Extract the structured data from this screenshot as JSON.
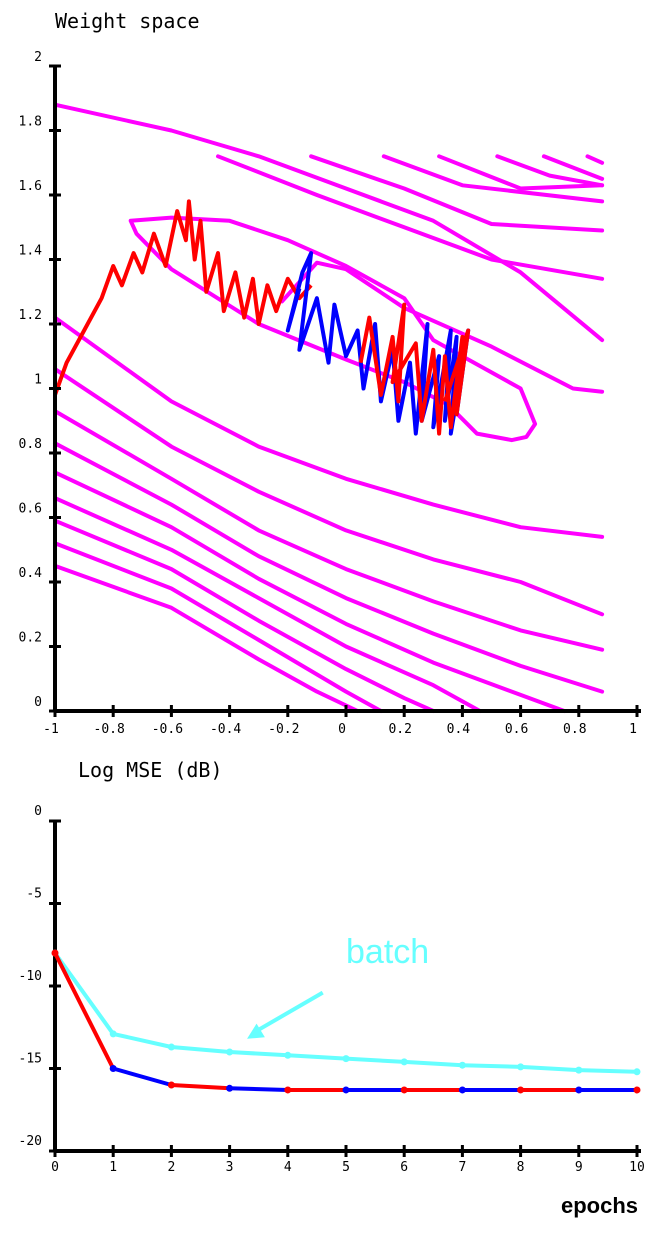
{
  "chart_data": [
    {
      "type": "line",
      "title": "Weight space",
      "xlabel": "",
      "ylabel": "",
      "xlim": [
        -1,
        1
      ],
      "ylim": [
        0,
        2
      ],
      "xticks": [
        "-1",
        "-0.8",
        "-0.6",
        "-0.4",
        "-0.2",
        "0",
        "0.2",
        "0.4",
        "0.6",
        "0.8",
        "1"
      ],
      "yticks": [
        "0",
        "0.2",
        "0.4",
        "0.6",
        "0.8",
        "1",
        "1.2",
        "1.4",
        "1.6",
        "1.8",
        "2"
      ],
      "colors": {
        "contour": "#ff00ff",
        "trajectory_a": "#ff0000",
        "trajectory_b": "#0000ff"
      },
      "contours": [
        [
          [
            -1,
            1.88
          ],
          [
            -0.6,
            1.8
          ],
          [
            -0.3,
            1.72
          ],
          [
            0,
            1.62
          ],
          [
            0.3,
            1.52
          ],
          [
            0.6,
            1.36
          ],
          [
            0.88,
            1.15
          ]
        ],
        [
          [
            -0.44,
            1.72
          ],
          [
            -0.1,
            1.6
          ],
          [
            0.2,
            1.5
          ],
          [
            0.5,
            1.4
          ],
          [
            0.88,
            1.34
          ]
        ],
        [
          [
            -0.12,
            1.72
          ],
          [
            0.2,
            1.62
          ],
          [
            0.5,
            1.51
          ],
          [
            0.88,
            1.49
          ]
        ],
        [
          [
            0.13,
            1.72
          ],
          [
            0.4,
            1.63
          ],
          [
            0.88,
            1.58
          ]
        ],
        [
          [
            0.32,
            1.72
          ],
          [
            0.6,
            1.62
          ],
          [
            0.88,
            1.63
          ]
        ],
        [
          [
            0.52,
            1.72
          ],
          [
            0.7,
            1.66
          ],
          [
            0.88,
            1.63
          ]
        ],
        [
          [
            0.68,
            1.72
          ],
          [
            0.88,
            1.65
          ]
        ],
        [
          [
            0.83,
            1.72
          ],
          [
            0.88,
            1.7
          ]
        ],
        [
          [
            -0.22,
            1.27
          ],
          [
            -0.1,
            1.39
          ],
          [
            0.0,
            1.37
          ],
          [
            0.2,
            1.25
          ],
          [
            0.5,
            1.13
          ],
          [
            0.78,
            1.0
          ],
          [
            0.88,
            0.99
          ]
        ],
        [
          [
            -0.74,
            1.52
          ],
          [
            -0.6,
            1.53
          ],
          [
            -0.4,
            1.52
          ],
          [
            -0.2,
            1.46
          ],
          [
            0.0,
            1.38
          ],
          [
            0.2,
            1.28
          ],
          [
            0.3,
            1.15
          ],
          [
            0.42,
            1.09
          ],
          [
            0.6,
            1.0
          ],
          [
            0.65,
            0.89
          ],
          [
            0.62,
            0.85
          ],
          [
            0.57,
            0.84
          ],
          [
            0.45,
            0.86
          ],
          [
            0.35,
            0.95
          ],
          [
            0.2,
            1.02
          ],
          [
            0.0,
            1.09
          ],
          [
            -0.3,
            1.2
          ],
          [
            -0.6,
            1.37
          ],
          [
            -0.72,
            1.48
          ],
          [
            -0.74,
            1.52
          ]
        ],
        [
          [
            -1,
            1.22
          ],
          [
            -0.6,
            0.96
          ],
          [
            -0.3,
            0.82
          ],
          [
            0,
            0.72
          ],
          [
            0.3,
            0.64
          ],
          [
            0.6,
            0.57
          ],
          [
            0.88,
            0.54
          ]
        ],
        [
          [
            -1,
            1.06
          ],
          [
            -0.6,
            0.82
          ],
          [
            -0.3,
            0.68
          ],
          [
            0,
            0.56
          ],
          [
            0.3,
            0.47
          ],
          [
            0.6,
            0.4
          ],
          [
            0.88,
            0.3
          ]
        ],
        [
          [
            -1,
            0.93
          ],
          [
            -0.6,
            0.72
          ],
          [
            -0.3,
            0.56
          ],
          [
            0,
            0.44
          ],
          [
            0.3,
            0.34
          ],
          [
            0.6,
            0.25
          ],
          [
            0.88,
            0.19
          ]
        ],
        [
          [
            -1,
            0.83
          ],
          [
            -0.6,
            0.64
          ],
          [
            -0.3,
            0.48
          ],
          [
            0,
            0.35
          ],
          [
            0.3,
            0.24
          ],
          [
            0.6,
            0.14
          ],
          [
            0.88,
            0.06
          ]
        ],
        [
          [
            -1,
            0.74
          ],
          [
            -0.6,
            0.57
          ],
          [
            -0.3,
            0.41
          ],
          [
            0,
            0.27
          ],
          [
            0.3,
            0.15
          ],
          [
            0.6,
            0.05
          ],
          [
            0.75,
            0.0
          ]
        ],
        [
          [
            -1,
            0.66
          ],
          [
            -0.6,
            0.5
          ],
          [
            -0.3,
            0.35
          ],
          [
            0,
            0.2
          ],
          [
            0.3,
            0.08
          ],
          [
            0.46,
            0.0
          ]
        ],
        [
          [
            -1,
            0.59
          ],
          [
            -0.6,
            0.44
          ],
          [
            -0.3,
            0.28
          ],
          [
            0,
            0.13
          ],
          [
            0.2,
            0.04
          ],
          [
            0.3,
            0.0
          ]
        ],
        [
          [
            -1,
            0.52
          ],
          [
            -0.6,
            0.38
          ],
          [
            -0.3,
            0.22
          ],
          [
            0,
            0.06
          ],
          [
            0.12,
            0.0
          ]
        ],
        [
          [
            -1,
            0.45
          ],
          [
            -0.6,
            0.32
          ],
          [
            -0.3,
            0.16
          ],
          [
            -0.1,
            0.06
          ],
          [
            0.04,
            0.0
          ]
        ]
      ],
      "trajectory_red": [
        [
          -1,
          0.98
        ],
        [
          -0.96,
          1.08
        ],
        [
          -0.9,
          1.18
        ],
        [
          -0.84,
          1.28
        ],
        [
          -0.8,
          1.38
        ],
        [
          -0.77,
          1.32
        ],
        [
          -0.73,
          1.42
        ],
        [
          -0.7,
          1.36
        ],
        [
          -0.66,
          1.48
        ],
        [
          -0.62,
          1.38
        ],
        [
          -0.58,
          1.55
        ],
        [
          -0.55,
          1.46
        ],
        [
          -0.54,
          1.58
        ],
        [
          -0.52,
          1.4
        ],
        [
          -0.5,
          1.52
        ],
        [
          -0.48,
          1.3
        ],
        [
          -0.44,
          1.42
        ],
        [
          -0.42,
          1.24
        ],
        [
          -0.38,
          1.36
        ],
        [
          -0.35,
          1.22
        ],
        [
          -0.32,
          1.34
        ],
        [
          -0.3,
          1.2
        ],
        [
          -0.27,
          1.32
        ],
        [
          -0.24,
          1.24
        ],
        [
          -0.2,
          1.34
        ],
        [
          -0.16,
          1.28
        ],
        [
          -0.12,
          1.32
        ]
      ],
      "trajectory_blue": [
        [
          -0.16,
          1.31
        ],
        [
          -0.2,
          1.18
        ],
        [
          -0.15,
          1.36
        ],
        [
          -0.12,
          1.42
        ],
        [
          -0.16,
          1.12
        ],
        [
          -0.1,
          1.28
        ],
        [
          -0.06,
          1.08
        ],
        [
          -0.04,
          1.26
        ],
        [
          0.0,
          1.1
        ],
        [
          0.04,
          1.18
        ],
        [
          0.06,
          1.0
        ],
        [
          0.1,
          1.2
        ],
        [
          0.12,
          0.96
        ],
        [
          0.16,
          1.12
        ],
        [
          0.18,
          0.9
        ],
        [
          0.22,
          1.08
        ],
        [
          0.24,
          0.86
        ],
        [
          0.28,
          1.2
        ],
        [
          0.26,
          0.9
        ],
        [
          0.32,
          1.1
        ],
        [
          0.3,
          0.88
        ],
        [
          0.36,
          1.18
        ],
        [
          0.34,
          0.9
        ],
        [
          0.38,
          1.16
        ],
        [
          0.36,
          0.86
        ],
        [
          0.42,
          1.18
        ],
        [
          0.38,
          0.92
        ]
      ],
      "trajectory_red_2": [
        [
          0.05,
          1.08
        ],
        [
          0.08,
          1.22
        ],
        [
          0.12,
          0.98
        ],
        [
          0.16,
          1.16
        ],
        [
          0.18,
          0.96
        ],
        [
          0.2,
          1.26
        ],
        [
          0.16,
          1.02
        ],
        [
          0.24,
          1.14
        ],
        [
          0.26,
          0.9
        ],
        [
          0.3,
          1.12
        ],
        [
          0.32,
          0.86
        ],
        [
          0.34,
          1.1
        ],
        [
          0.36,
          0.88
        ],
        [
          0.4,
          1.16
        ],
        [
          0.38,
          0.92
        ],
        [
          0.42,
          1.18
        ],
        [
          0.34,
          0.96
        ]
      ]
    },
    {
      "type": "line",
      "title": "Log MSE (dB)",
      "xlabel": "epochs",
      "ylabel": "",
      "xlim": [
        0,
        10
      ],
      "ylim": [
        -20,
        0
      ],
      "xticks": [
        "0",
        "1",
        "2",
        "3",
        "4",
        "5",
        "6",
        "7",
        "8",
        "9",
        "10"
      ],
      "yticks": [
        "0",
        "-5",
        "-10",
        "-15",
        "-20"
      ],
      "x": [
        0,
        1,
        2,
        3,
        4,
        5,
        6,
        7,
        8,
        9,
        10
      ],
      "series": [
        {
          "name": "batch",
          "color": "#66ffff",
          "values": [
            -8,
            -12.9,
            -13.7,
            -14.0,
            -14.2,
            -14.4,
            -14.6,
            -14.8,
            -14.9,
            -15.1,
            -15.2
          ]
        },
        {
          "name": "",
          "color": "#ff0000",
          "alt_color": "#0000ff",
          "values": [
            -8,
            -15.0,
            -16.0,
            -16.2,
            -16.3,
            -16.3,
            -16.3,
            -16.3,
            -16.3,
            -16.3,
            -16.3
          ]
        }
      ],
      "annotation": {
        "text": "batch",
        "color": "#66ffff",
        "arrow_from": [
          4.6,
          -10.4
        ],
        "arrow_to": [
          3.3,
          -13.2
        ]
      }
    }
  ]
}
